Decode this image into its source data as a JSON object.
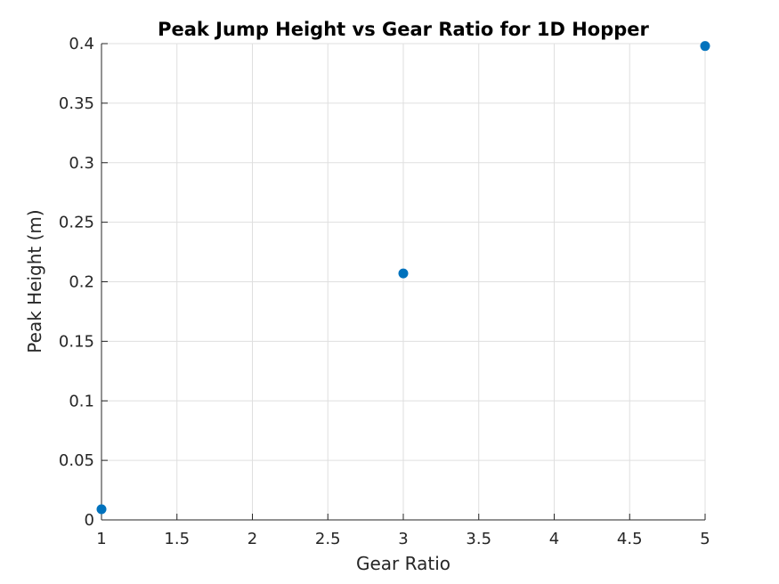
{
  "chart_data": {
    "type": "scatter",
    "title": "Peak Jump Height vs Gear Ratio for 1D Hopper",
    "xlabel": "Gear Ratio",
    "ylabel": "Peak Height (m)",
    "xlim": [
      1,
      5
    ],
    "ylim": [
      0,
      0.4
    ],
    "x_ticks": [
      1,
      1.5,
      2,
      2.5,
      3,
      3.5,
      4,
      4.5,
      5
    ],
    "x_tick_labels": [
      "1",
      "1.5",
      "2",
      "2.5",
      "3",
      "3.5",
      "4",
      "4.5",
      "5"
    ],
    "y_ticks": [
      0,
      0.05,
      0.1,
      0.15,
      0.2,
      0.25,
      0.3,
      0.35,
      0.4
    ],
    "y_tick_labels": [
      "0",
      "0.05",
      "0.1",
      "0.15",
      "0.2",
      "0.25",
      "0.3",
      "0.35",
      "0.4"
    ],
    "grid": true,
    "series": [
      {
        "color": "#0072BD",
        "points": [
          {
            "x": 1,
            "y": 0.009
          },
          {
            "x": 3,
            "y": 0.207
          },
          {
            "x": 5,
            "y": 0.398
          }
        ]
      }
    ]
  }
}
